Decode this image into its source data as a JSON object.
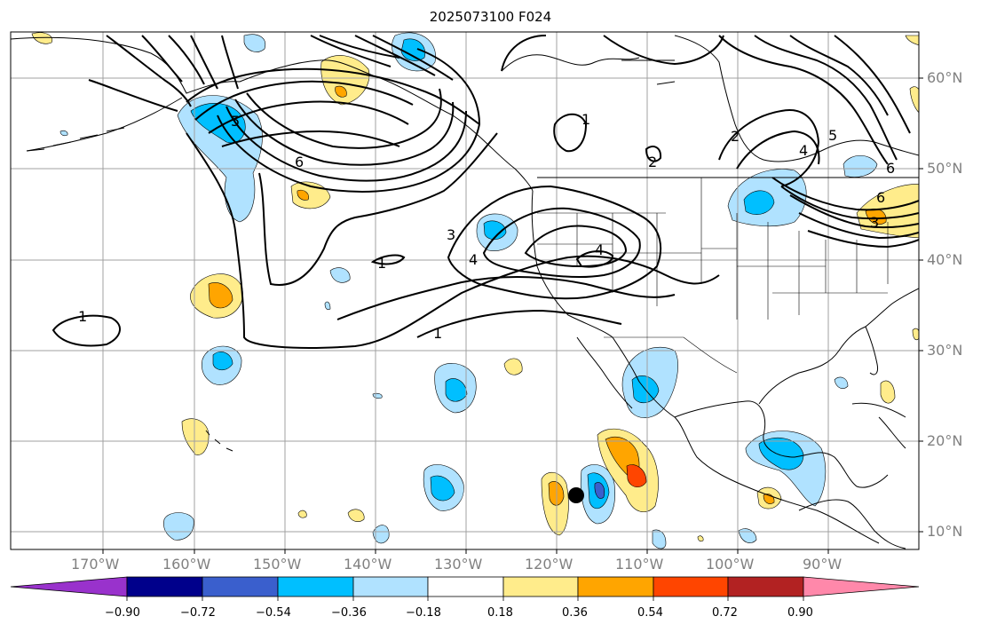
{
  "title": "2025073100 F024",
  "lon_labels": [
    "170°W",
    "160°W",
    "150°W",
    "140°W",
    "130°W",
    "120°W",
    "110°W",
    "100°W",
    "90°W"
  ],
  "lat_labels": [
    "60°N",
    "50°N",
    "40°N",
    "30°N",
    "20°N",
    "10°N"
  ],
  "colorbar": {
    "labels": [
      "−0.90",
      "−0.72",
      "−0.54",
      "−0.36",
      "−0.18",
      "0.18",
      "0.36",
      "0.54",
      "0.72",
      "0.90"
    ],
    "colors": [
      "#9932cc",
      "#00008b",
      "#3a5fcd",
      "#00bfff",
      "#b0e2ff",
      "#ffffff",
      "#ffec8b",
      "#ffa500",
      "#ff4500",
      "#b22222",
      "#ff88aa"
    ]
  },
  "contour_labels": [
    "1",
    "1",
    "1",
    "1",
    "2",
    "2",
    "3",
    "3",
    "4",
    "4",
    "4",
    "5",
    "5",
    "6",
    "6",
    "6"
  ],
  "legend_colors": {
    "blue_light": "#b0e2ff",
    "blue": "#00bfff",
    "blue_dark": "#3a5fcd",
    "yellow": "#ffec8b",
    "orange": "#ffa500",
    "red": "#ff4500"
  }
}
